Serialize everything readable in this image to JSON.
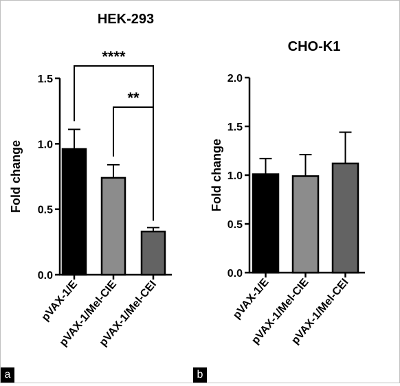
{
  "chart_data": [
    {
      "panel_label": "a",
      "type": "bar",
      "title": "HEK-293",
      "ylabel": "Fold change",
      "xlabel": "",
      "ylim": [
        0,
        1.5
      ],
      "yticks": [
        0.0,
        0.5,
        1.0,
        1.5
      ],
      "ytick_labels": [
        "0.0",
        "0.5",
        "1.0",
        "1.5"
      ],
      "categories": [
        "pVAX-1/E",
        "pVAX-1/Mel-CIE",
        "pVAX-1/Mel-CEI"
      ],
      "values": [
        0.96,
        0.74,
        0.33
      ],
      "errors": [
        0.15,
        0.1,
        0.03
      ],
      "colors": [
        "#000000",
        "#8c8c8c",
        "#636363"
      ],
      "grid": false,
      "significance": [
        {
          "from": 0,
          "to": 2,
          "label": "****"
        },
        {
          "from": 1,
          "to": 2,
          "label": "**"
        }
      ]
    },
    {
      "panel_label": "b",
      "type": "bar",
      "title": "CHO-K1",
      "ylabel": "Fold change",
      "xlabel": "",
      "ylim": [
        0,
        2.0
      ],
      "yticks": [
        0.0,
        0.5,
        1.0,
        1.5,
        2.0
      ],
      "ytick_labels": [
        "0.0",
        "0.5",
        "1.0",
        "1.5",
        "2.0"
      ],
      "categories": [
        "pVAX-1/E",
        "pVAX-1/Mel-CIE",
        "pVAX-1/Mel-CEI"
      ],
      "values": [
        1.01,
        0.99,
        1.12
      ],
      "errors": [
        0.16,
        0.22,
        0.32
      ],
      "colors": [
        "#000000",
        "#8c8c8c",
        "#636363"
      ],
      "grid": false,
      "significance": []
    }
  ]
}
